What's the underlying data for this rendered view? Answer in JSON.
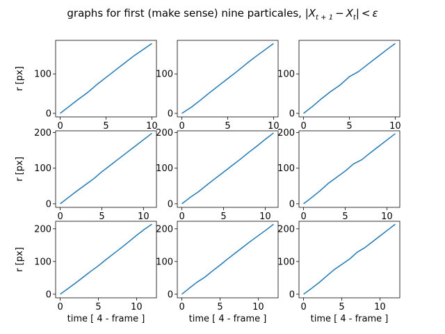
{
  "figure": {
    "title": "graphs for first (make sense) nine particales, |X_{t+1} - X_t| < ε",
    "title_parts": {
      "prefix": "graphs for first (make sense) nine particales, ",
      "abs_open": "|",
      "X": "X",
      "sub1": "t + 1",
      "minus": "−",
      "sub2": "t",
      "abs_close": "|",
      "lt": "<",
      "eps": "ε"
    },
    "ylabel": "r [px]",
    "xlabel": "time [ 4 - frame ]",
    "line_color": "#1f77b4"
  },
  "chart_data": [
    {
      "type": "line",
      "row": 0,
      "col": 0,
      "xlim": [
        -0.5,
        10.5
      ],
      "ylim": [
        -9,
        185
      ],
      "xticks": [
        0,
        5,
        10
      ],
      "yticks": [
        0,
        100
      ],
      "x": [
        0,
        1,
        2,
        3,
        4,
        5,
        6,
        7,
        8,
        9,
        10
      ],
      "y": [
        0,
        18,
        36,
        53,
        73,
        91,
        109,
        127,
        145,
        161,
        177
      ]
    },
    {
      "type": "line",
      "row": 0,
      "col": 1,
      "xlim": [
        -0.5,
        10.5
      ],
      "ylim": [
        -9,
        185
      ],
      "xticks": [
        0,
        5,
        10
      ],
      "yticks": [
        0,
        100
      ],
      "x": [
        0,
        1,
        2,
        3,
        4,
        5,
        6,
        7,
        8,
        9,
        10
      ],
      "y": [
        0,
        15,
        33,
        52,
        70,
        88,
        106,
        125,
        143,
        160,
        177
      ]
    },
    {
      "type": "line",
      "row": 0,
      "col": 2,
      "xlim": [
        -0.5,
        10.5
      ],
      "ylim": [
        -9,
        185
      ],
      "xticks": [
        0,
        5,
        10
      ],
      "yticks": [
        0,
        100
      ],
      "x": [
        0,
        1,
        2,
        3,
        4,
        5,
        6,
        7,
        8,
        9,
        10
      ],
      "y": [
        0,
        18,
        38,
        56,
        72,
        93,
        106,
        124,
        142,
        160,
        177
      ]
    },
    {
      "type": "line",
      "row": 1,
      "col": 0,
      "xlim": [
        -0.55,
        11.55
      ],
      "ylim": [
        -10,
        205
      ],
      "xticks": [
        0,
        5,
        10
      ],
      "yticks": [
        0,
        100,
        200
      ],
      "x": [
        0,
        1,
        2,
        3,
        4,
        5,
        6,
        7,
        8,
        9,
        10,
        11
      ],
      "y": [
        0,
        18,
        36,
        53,
        70,
        90,
        108,
        126,
        144,
        162,
        180,
        198
      ]
    },
    {
      "type": "line",
      "row": 1,
      "col": 1,
      "xlim": [
        -0.55,
        11.55
      ],
      "ylim": [
        -10,
        205
      ],
      "xticks": [
        0,
        5,
        10
      ],
      "yticks": [
        0,
        100,
        200
      ],
      "x": [
        0,
        1,
        2,
        3,
        4,
        5,
        6,
        7,
        8,
        9,
        10,
        11
      ],
      "y": [
        0,
        18,
        34,
        53,
        71,
        89,
        107,
        125,
        144,
        162,
        181,
        199
      ]
    },
    {
      "type": "line",
      "row": 1,
      "col": 2,
      "xlim": [
        -0.55,
        11.55
      ],
      "ylim": [
        -10,
        205
      ],
      "xticks": [
        0,
        5,
        10
      ],
      "yticks": [
        0,
        100,
        200
      ],
      "x": [
        0,
        1,
        2,
        3,
        4,
        5,
        6,
        7,
        8,
        9,
        10,
        11
      ],
      "y": [
        0,
        18,
        37,
        58,
        75,
        92,
        112,
        124,
        143,
        161,
        179,
        197
      ]
    },
    {
      "type": "line",
      "row": 2,
      "col": 0,
      "xlim": [
        -0.6,
        12.6
      ],
      "ylim": [
        -11,
        223
      ],
      "xticks": [
        0,
        5,
        10
      ],
      "yticks": [
        0,
        100,
        200
      ],
      "x": [
        0,
        1,
        2,
        3,
        4,
        5,
        6,
        7,
        8,
        9,
        10,
        11,
        12
      ],
      "y": [
        0,
        17,
        34,
        52,
        70,
        87,
        106,
        124,
        142,
        161,
        180,
        198,
        214
      ]
    },
    {
      "type": "line",
      "row": 2,
      "col": 1,
      "xlim": [
        -0.6,
        12.6
      ],
      "ylim": [
        -11,
        223
      ],
      "xticks": [
        0,
        5,
        10
      ],
      "yticks": [
        0,
        100,
        200
      ],
      "x": [
        0,
        1,
        2,
        3,
        4,
        5,
        6,
        7,
        8,
        9,
        10,
        11,
        12
      ],
      "y": [
        0,
        19,
        37,
        52,
        71,
        89,
        108,
        126,
        144,
        162,
        179,
        196,
        214
      ]
    },
    {
      "type": "line",
      "row": 2,
      "col": 2,
      "xlim": [
        -0.6,
        12.6
      ],
      "ylim": [
        -11,
        223
      ],
      "xticks": [
        0,
        5,
        10
      ],
      "yticks": [
        0,
        100,
        200
      ],
      "x": [
        0,
        1,
        2,
        3,
        4,
        5,
        6,
        7,
        8,
        9,
        10,
        11,
        12
      ],
      "y": [
        0,
        17,
        35,
        55,
        75,
        91,
        107,
        128,
        142,
        160,
        178,
        196,
        214
      ]
    }
  ]
}
